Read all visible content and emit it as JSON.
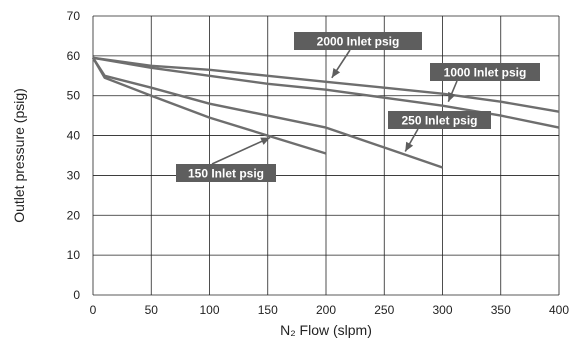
{
  "chart_data": {
    "type": "line",
    "xlabel": "N₂ Flow (slpm)",
    "ylabel": "Outlet pressure (psig)",
    "xlim": [
      0,
      400
    ],
    "ylim": [
      0,
      70
    ],
    "xticks": [
      0,
      50,
      100,
      150,
      200,
      250,
      300,
      350,
      400
    ],
    "yticks": [
      0,
      10,
      20,
      30,
      40,
      50,
      60,
      70
    ],
    "grid": true,
    "series": [
      {
        "name": "2000 Inlet psig",
        "x": [
          0,
          50,
          100,
          150,
          200,
          250,
          300,
          350,
          400
        ],
        "y": [
          59.5,
          57.5,
          56.5,
          55,
          53.5,
          52,
          50.5,
          48.5,
          46
        ]
      },
      {
        "name": "1000 Inlet psig",
        "x": [
          0,
          50,
          100,
          150,
          200,
          250,
          300,
          350,
          400
        ],
        "y": [
          59.5,
          57,
          55,
          53,
          51.5,
          49.5,
          47.5,
          45,
          42
        ]
      },
      {
        "name": "250 Inlet psig",
        "x": [
          0,
          10,
          50,
          100,
          150,
          200,
          250,
          300
        ],
        "y": [
          59.5,
          55,
          52,
          48,
          45,
          42,
          37,
          32
        ]
      },
      {
        "name": "150 Inlet psig",
        "x": [
          0,
          10,
          50,
          100,
          150,
          200
        ],
        "y": [
          59.5,
          54.5,
          50,
          44.5,
          40,
          35.5
        ]
      }
    ],
    "annotations": [
      {
        "text": "2000 Inlet psig",
        "points_to": [
          205,
          54.5
        ]
      },
      {
        "text": "1000 Inlet psig",
        "points_to": [
          305,
          48.5
        ]
      },
      {
        "text": "250 Inlet psig",
        "points_to": [
          268,
          36
        ]
      },
      {
        "text": "150 Inlet psig",
        "points_to": [
          152,
          39.5
        ]
      }
    ],
    "colors": {
      "line": "#6e6e6e",
      "label_bg": "#5e5e5e",
      "grid": "#222222"
    }
  }
}
